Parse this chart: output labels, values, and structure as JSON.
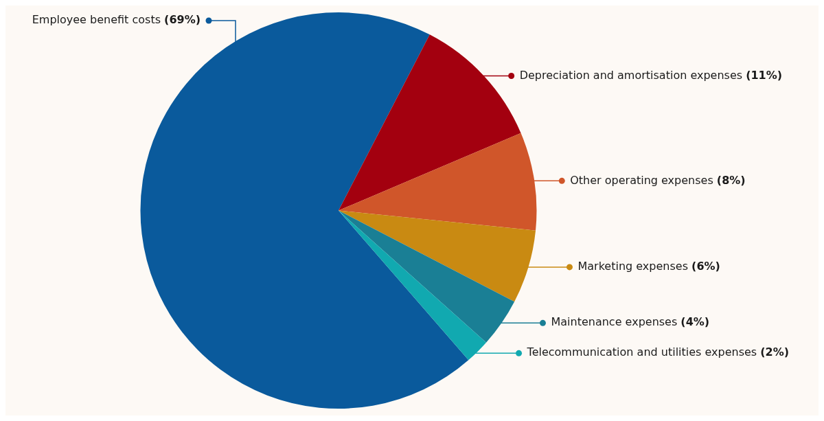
{
  "chart_data": {
    "type": "pie",
    "categories": [
      "Employee benefit costs",
      "Depreciation and amortisation expenses",
      "Other operating expenses",
      "Marketing expenses",
      "Maintenance expenses",
      "Telecommunication and utilities expenses"
    ],
    "values": [
      69,
      11,
      8,
      6,
      4,
      2
    ],
    "value_labels": [
      "(69%)",
      "(11%)",
      "(8%)",
      "(6%)",
      "(4%)",
      "(2%)"
    ],
    "colors": [
      "#0a5a9c",
      "#a3000f",
      "#d0562a",
      "#c98a12",
      "#1a7f95",
      "#11a9b0"
    ],
    "legend": "right"
  }
}
